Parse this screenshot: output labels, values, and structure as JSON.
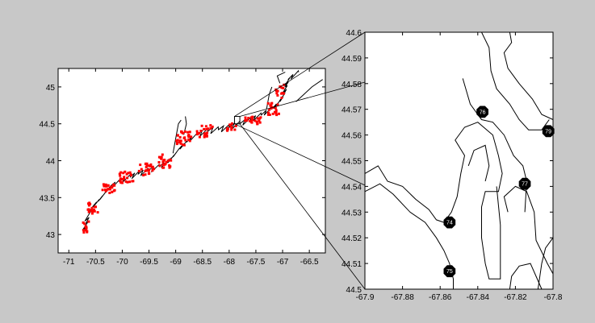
{
  "window": {
    "background": "#c8c8c8"
  },
  "chart_data": [
    {
      "type": "map",
      "title": "",
      "xlabel": "",
      "ylabel": "",
      "xlim": [
        -71.2,
        -66.2
      ],
      "ylim": [
        42.75,
        45.25
      ],
      "xticks": [
        -71,
        -70.5,
        -70,
        -69.5,
        -69,
        -68.5,
        -68,
        -67.5,
        -67,
        -66.5
      ],
      "xtick_labels": [
        "-71",
        "-70.5",
        "-70",
        "-69.5",
        "-69",
        "-68.5",
        "-68",
        "-67.5",
        "-67",
        "-66.5"
      ],
      "yticks": [
        43,
        43.5,
        44,
        44.5,
        45
      ],
      "ytick_labels": [
        "43",
        "43.5",
        "44",
        "44.5",
        "45"
      ],
      "grid": false,
      "series": [
        {
          "role": "coastline",
          "color": "#000000"
        },
        {
          "role": "markers",
          "color": "#ff0000"
        }
      ],
      "inset_box": {
        "x": [
          -67.9,
          -67.8
        ],
        "y": [
          44.5,
          44.6
        ]
      }
    },
    {
      "type": "map",
      "title": "",
      "xlabel": "",
      "ylabel": "",
      "xlim": [
        -67.9,
        -67.8
      ],
      "ylim": [
        44.5,
        44.6
      ],
      "xticks": [
        -67.9,
        -67.88,
        -67.86,
        -67.84,
        -67.82,
        -67.8
      ],
      "xtick_labels": [
        "-67.9",
        "-67.88",
        "-67.86",
        "-67.84",
        "-67.82",
        "-67.8"
      ],
      "yticks": [
        44.5,
        44.51,
        44.52,
        44.53,
        44.54,
        44.55,
        44.56,
        44.57,
        44.58,
        44.59,
        44.6
      ],
      "ytick_labels": [
        "44.5",
        "44.51",
        "44.52",
        "44.53",
        "44.54",
        "44.55",
        "44.56",
        "44.57",
        "44.58",
        "44.59",
        "44.6"
      ],
      "grid": false,
      "coast_color": "#000000",
      "stations": [
        {
          "label": "74",
          "x": -67.855,
          "y": 44.526
        },
        {
          "label": "75",
          "x": -67.855,
          "y": 44.507
        },
        {
          "label": "76",
          "x": -67.8375,
          "y": 44.569
        },
        {
          "label": "77",
          "x": -67.815,
          "y": 44.541
        },
        {
          "label": "79",
          "x": -67.8025,
          "y": 44.5615
        }
      ]
    }
  ]
}
